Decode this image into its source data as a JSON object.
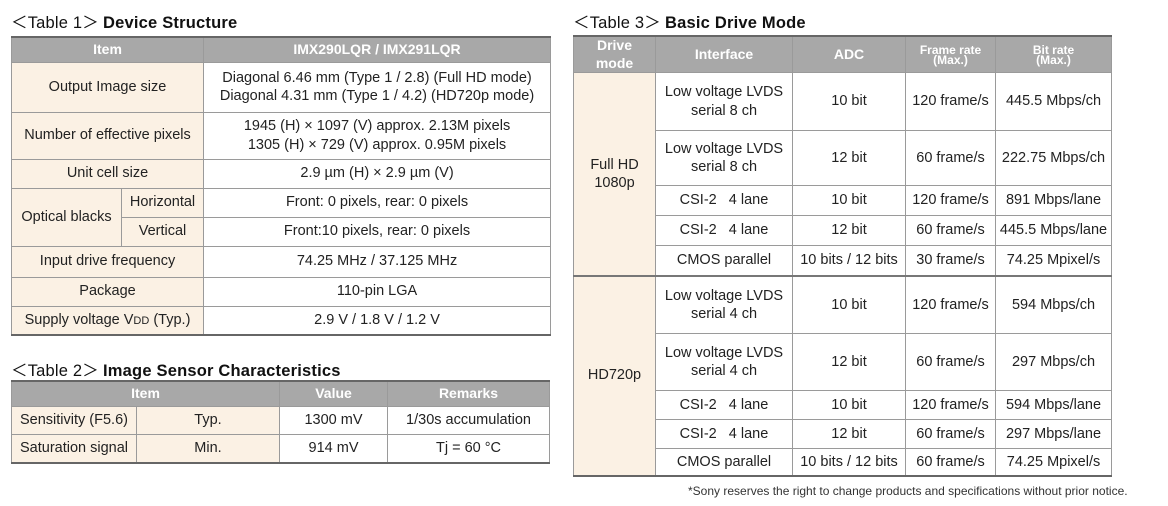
{
  "table1": {
    "caption": "＜Table 1＞",
    "title": "Device Structure",
    "head_item": "Item",
    "head_model": "IMX290LQR / IMX291LQR",
    "output_label": "Output Image size",
    "output_v1": "Diagonal 6.46 mm (Type 1 / 2.8) (Full HD mode)",
    "output_v2": "Diagonal 4.31 mm (Type 1 / 4.2) (HD720p mode)",
    "pixels_label": "Number of effective pixels",
    "pixels_v1": "1945 (H) × 1097 (V) approx. 2.13M pixels",
    "pixels_v2": "1305 (H) × 729 (V) approx. 0.95M pixels",
    "unit_label": "Unit cell size",
    "unit_value": "2.9 µm (H) × 2.9 µm (V)",
    "optical_label": "Optical blacks",
    "horizontal_label": "Horizontal",
    "horizontal_value": "Front: 0 pixels, rear: 0 pixels",
    "vertical_label": "Vertical",
    "vertical_value": "Front:10 pixels, rear: 0 pixels",
    "freq_label": "Input drive frequency",
    "freq_value": "74.25 MHz / 37.125 MHz",
    "package_label": "Package",
    "package_value": "110-pin LGA",
    "supply_label": "Supply voltage V",
    "supply_sub": "DD",
    "supply_suffix": " (Typ.)",
    "supply_value": "2.9 V / 1.8 V / 1.2 V"
  },
  "table2": {
    "caption": "＜Table 2＞",
    "title": "Image Sensor Characteristics",
    "head_item": "Item",
    "head_value": "Value",
    "head_remarks": "Remarks",
    "rows": [
      {
        "item": "Sensitivity (F5.6)",
        "cond": "Typ.",
        "value": "1300 mV",
        "remarks": "1/30s accumulation"
      },
      {
        "item": "Saturation signal",
        "cond": "Min.",
        "value": "914 mV",
        "remarks": "Tj = 60 °C"
      }
    ]
  },
  "table3": {
    "caption": "＜Table 3＞",
    "title": "Basic Drive Mode",
    "head_mode": "Drive mode",
    "head_interface": "Interface",
    "head_adc": "ADC",
    "head_frame_1": "Frame rate",
    "head_frame_2": "(Max.)",
    "head_bit_1": "Bit rate",
    "head_bit_2": "(Max.)",
    "mode_fullhd_1": "Full HD",
    "mode_fullhd_2": "1080p",
    "mode_hd720": "HD720p",
    "rows": [
      {
        "if1": "Low voltage LVDS",
        "if2": "serial 8 ch",
        "adc": "10 bit",
        "fps": "120 frame/s",
        "rate": "445.5 Mbps/ch"
      },
      {
        "if1": "Low voltage LVDS",
        "if2": "serial 8 ch",
        "adc": "12 bit",
        "fps": "60 frame/s",
        "rate": "222.75 Mbps/ch"
      },
      {
        "if1": "CSI-2   4 lane",
        "if2": "",
        "adc": "10 bit",
        "fps": "120 frame/s",
        "rate": "891 Mbps/lane"
      },
      {
        "if1": "CSI-2   4 lane",
        "if2": "",
        "adc": "12 bit",
        "fps": "60 frame/s",
        "rate": "445.5 Mbps/lane"
      },
      {
        "if1": "CMOS parallel",
        "if2": "",
        "adc": "10 bits / 12 bits",
        "fps": "30 frame/s",
        "rate": "74.25 Mpixel/s"
      },
      {
        "if1": "Low voltage LVDS",
        "if2": "serial 4 ch",
        "adc": "10 bit",
        "fps": "120 frame/s",
        "rate": "594 Mbps/ch"
      },
      {
        "if1": "Low voltage LVDS",
        "if2": "serial 4 ch",
        "adc": "12 bit",
        "fps": "60 frame/s",
        "rate": "297 Mbps/ch"
      },
      {
        "if1": "CSI-2   4 lane",
        "if2": "",
        "adc": "10 bit",
        "fps": "120 frame/s",
        "rate": "594 Mbps/lane"
      },
      {
        "if1": "CSI-2   4 lane",
        "if2": "",
        "adc": "12 bit",
        "fps": "60 frame/s",
        "rate": "297 Mbps/lane"
      },
      {
        "if1": "CMOS parallel",
        "if2": "",
        "adc": "10 bits / 12 bits",
        "fps": "60 frame/s",
        "rate": "74.25 Mpixel/s"
      }
    ]
  },
  "footnote": "*Sony reserves the right to change products and specifications without prior notice."
}
